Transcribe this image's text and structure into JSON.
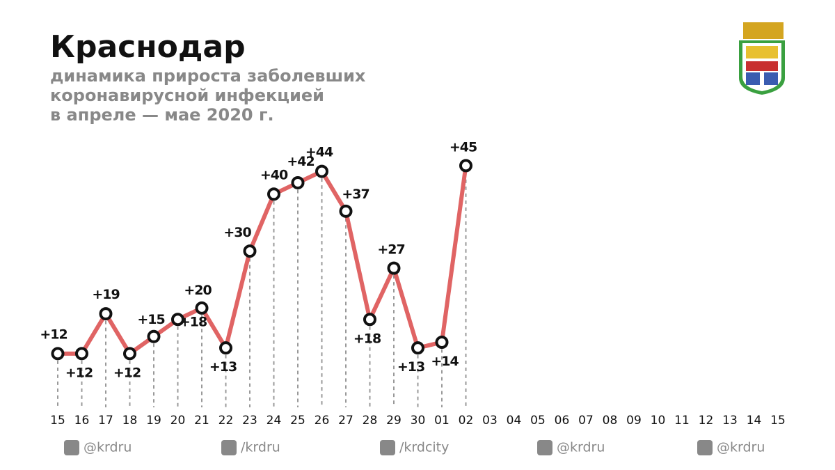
{
  "chart_data": {
    "type": "line",
    "title": "Краснодар",
    "subtitle": [
      "динамика прироста заболевших",
      "коронавирусной инфекцией",
      "в апреле — мае 2020 г."
    ],
    "categories": [
      "15",
      "16",
      "17",
      "18",
      "19",
      "20",
      "21",
      "22",
      "23",
      "24",
      "25",
      "26",
      "27",
      "28",
      "29",
      "30",
      "01",
      "02",
      "03",
      "04",
      "05",
      "06",
      "07",
      "08",
      "09",
      "10",
      "11",
      "12",
      "13",
      "14",
      "15"
    ],
    "series": [
      {
        "name": "прирост заболевших",
        "color": "#e06464",
        "values": [
          12,
          12,
          19,
          12,
          15,
          18,
          20,
          13,
          30,
          40,
          42,
          44,
          37,
          18,
          27,
          13,
          14,
          45,
          null,
          null,
          null,
          null,
          null,
          null,
          null,
          null,
          null,
          null,
          null,
          null,
          null
        ],
        "value_labels": [
          "+12",
          "+12",
          "+19",
          "+12",
          "+15",
          "+18",
          "+20",
          "+13",
          "+30",
          "+40",
          "+42",
          "+44",
          "+37",
          "+18",
          "+27",
          "+13",
          "+14",
          "+45",
          null,
          null,
          null,
          null,
          null,
          null,
          null,
          null,
          null,
          null,
          null,
          null,
          null
        ]
      }
    ],
    "ylim": [
      0,
      50
    ]
  },
  "footer": [
    "@krdru",
    "/krdru",
    "/krdcity",
    "@krdru",
    "@krdru"
  ]
}
